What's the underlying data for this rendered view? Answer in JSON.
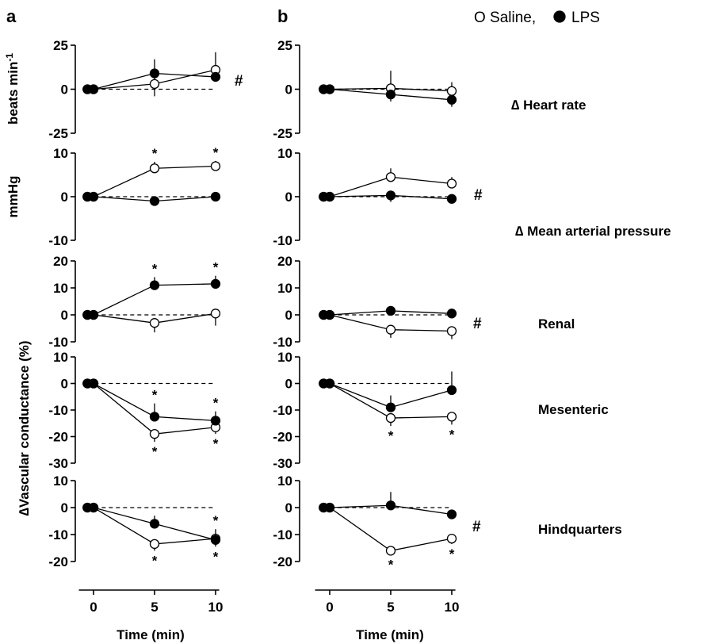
{
  "panels": {
    "a": "a",
    "b": "b"
  },
  "legend": {
    "saline": "O Saline,",
    "lps": "LPS"
  },
  "y_labels": {
    "heart_rate": "beats min",
    "heart_rate_sup": "-1",
    "map": "mmHg",
    "conductance": "∆Vascular conductance (%)"
  },
  "row_labels": {
    "heart_rate": "∆ Heart rate",
    "map": "∆ Mean arterial pressure",
    "renal": "Renal",
    "mesenteric": "Mesenteric",
    "hindquarters": "Hindquarters"
  },
  "x_axis": {
    "label": "Time (min)",
    "ticks": [
      "0",
      "5",
      "10"
    ]
  },
  "colors": {
    "line": "#000000",
    "open_marker_fill": "#ffffff",
    "filled_marker_fill": "#000000"
  },
  "chart_data": [
    {
      "type": "line",
      "panel": "a",
      "row": "heart_rate",
      "ylabel": "beats min-1",
      "ylim": [
        -25,
        25
      ],
      "yticks": [
        25,
        0,
        -25
      ],
      "x": [
        -0.5,
        0,
        5,
        10
      ],
      "series": [
        {
          "name": "Saline",
          "marker": "open",
          "values": [
            0,
            0,
            3,
            11
          ],
          "err_up": [
            0,
            0,
            4,
            10
          ],
          "err_down": [
            0,
            0,
            7,
            0
          ],
          "sig_above": [
            false,
            false,
            false,
            false
          ],
          "sig_below": [
            false,
            false,
            false,
            false
          ]
        },
        {
          "name": "LPS",
          "marker": "filled",
          "values": [
            0,
            0,
            9,
            7
          ],
          "err_up": [
            0,
            0,
            8,
            0
          ],
          "err_down": [
            0,
            0,
            0,
            0
          ],
          "sig_above": [
            false,
            false,
            false,
            false
          ],
          "sig_below": [
            false,
            false,
            false,
            false
          ]
        }
      ],
      "hash": "#"
    },
    {
      "type": "line",
      "panel": "a",
      "row": "map",
      "ylabel": "mmHg",
      "ylim": [
        -10,
        10
      ],
      "yticks": [
        10,
        0,
        -10
      ],
      "x": [
        -0.5,
        0,
        5,
        10
      ],
      "series": [
        {
          "name": "Saline",
          "marker": "open",
          "values": [
            0,
            0,
            6.5,
            7
          ],
          "err_up": [
            0,
            0,
            1.5,
            1.2
          ],
          "err_down": [
            0,
            0,
            0,
            0
          ],
          "sig_above": [
            false,
            false,
            true,
            true
          ],
          "sig_below": [
            false,
            false,
            false,
            false
          ]
        },
        {
          "name": "LPS",
          "marker": "filled",
          "values": [
            0,
            0,
            -1,
            0
          ],
          "err_up": [
            0,
            0,
            0,
            0
          ],
          "err_down": [
            0,
            0,
            0.5,
            0
          ],
          "sig_above": [
            false,
            false,
            false,
            false
          ],
          "sig_below": [
            false,
            false,
            false,
            false
          ]
        }
      ],
      "hash": ""
    },
    {
      "type": "line",
      "panel": "a",
      "row": "renal",
      "ylabel": "∆Vascular conductance (%)",
      "ylim": [
        -10,
        20
      ],
      "yticks": [
        20,
        10,
        0,
        -10
      ],
      "x": [
        -0.5,
        0,
        5,
        10
      ],
      "series": [
        {
          "name": "Saline",
          "marker": "open",
          "values": [
            0,
            0,
            -3,
            0.5
          ],
          "err_up": [
            0,
            0,
            0,
            0
          ],
          "err_down": [
            0,
            0,
            3.5,
            4.5
          ],
          "sig_above": [
            false,
            false,
            false,
            false
          ],
          "sig_below": [
            false,
            false,
            false,
            false
          ]
        },
        {
          "name": "LPS",
          "marker": "filled",
          "values": [
            0,
            0,
            11,
            11.5
          ],
          "err_up": [
            0,
            0,
            3,
            3
          ],
          "err_down": [
            0,
            0,
            0,
            0
          ],
          "sig_above": [
            false,
            false,
            true,
            true
          ],
          "sig_below": [
            false,
            false,
            false,
            false
          ]
        }
      ],
      "hash": ""
    },
    {
      "type": "line",
      "panel": "a",
      "row": "mesenteric",
      "ylabel": "∆Vascular conductance (%)",
      "ylim": [
        -30,
        10
      ],
      "yticks": [
        10,
        0,
        -10,
        -20,
        -30
      ],
      "x": [
        -0.5,
        0,
        5,
        10
      ],
      "series": [
        {
          "name": "Saline",
          "marker": "open",
          "values": [
            0,
            0,
            -19,
            -16.5
          ],
          "err_up": [
            0,
            0,
            0,
            0
          ],
          "err_down": [
            0,
            0,
            3,
            2.5
          ],
          "sig_above": [
            false,
            false,
            false,
            false
          ],
          "sig_below": [
            false,
            false,
            true,
            true
          ]
        },
        {
          "name": "LPS",
          "marker": "filled",
          "values": [
            0,
            0,
            -12.5,
            -14
          ],
          "err_up": [
            0,
            0,
            5,
            3.5
          ],
          "err_down": [
            0,
            0,
            0,
            0
          ],
          "sig_above": [
            false,
            false,
            true,
            true
          ],
          "sig_below": [
            false,
            false,
            false,
            false
          ]
        }
      ],
      "hash": ""
    },
    {
      "type": "line",
      "panel": "a",
      "row": "hindquarters",
      "ylabel": "∆Vascular conductance (%)",
      "ylim": [
        -20,
        10
      ],
      "yticks": [
        10,
        0,
        -10,
        -20
      ],
      "x": [
        -0.5,
        0,
        5,
        10
      ],
      "series": [
        {
          "name": "Saline",
          "marker": "open",
          "values": [
            0,
            0,
            -13.5,
            -11.5
          ],
          "err_up": [
            0,
            0,
            0,
            0
          ],
          "err_down": [
            0,
            0,
            2.5,
            3
          ],
          "sig_above": [
            false,
            false,
            false,
            false
          ],
          "sig_below": [
            false,
            false,
            true,
            true
          ]
        },
        {
          "name": "LPS",
          "marker": "filled",
          "values": [
            0,
            0,
            -6,
            -12
          ],
          "err_up": [
            0,
            0,
            3,
            4
          ],
          "err_down": [
            0,
            0,
            0,
            0
          ],
          "sig_above": [
            false,
            false,
            false,
            true
          ],
          "sig_below": [
            false,
            false,
            false,
            false
          ]
        }
      ],
      "hash": ""
    },
    {
      "type": "line",
      "panel": "b",
      "row": "heart_rate",
      "ylabel": "",
      "ylim": [
        -25,
        25
      ],
      "yticks": [
        25,
        0,
        -25
      ],
      "x": [
        -0.5,
        0,
        5,
        10
      ],
      "series": [
        {
          "name": "Saline",
          "marker": "open",
          "values": [
            0,
            0,
            0.5,
            -1
          ],
          "err_up": [
            0,
            0,
            10,
            5
          ],
          "err_down": [
            0,
            0,
            0,
            0
          ],
          "sig_above": [
            false,
            false,
            false,
            false
          ],
          "sig_below": [
            false,
            false,
            false,
            false
          ]
        },
        {
          "name": "LPS",
          "marker": "filled",
          "values": [
            0,
            0,
            -3,
            -6
          ],
          "err_up": [
            0,
            0,
            0,
            0
          ],
          "err_down": [
            0,
            0,
            4,
            4
          ],
          "sig_above": [
            false,
            false,
            false,
            false
          ],
          "sig_below": [
            false,
            false,
            false,
            false
          ]
        }
      ],
      "hash": ""
    },
    {
      "type": "line",
      "panel": "b",
      "row": "map",
      "ylabel": "",
      "ylim": [
        -10,
        10
      ],
      "yticks": [
        10,
        0,
        -10
      ],
      "x": [
        -0.5,
        0,
        5,
        10
      ],
      "series": [
        {
          "name": "Saline",
          "marker": "open",
          "values": [
            0,
            0,
            4.5,
            3
          ],
          "err_up": [
            0,
            0,
            2,
            1.5
          ],
          "err_down": [
            0,
            0,
            0,
            0
          ],
          "sig_above": [
            false,
            false,
            false,
            false
          ],
          "sig_below": [
            false,
            false,
            false,
            false
          ]
        },
        {
          "name": "LPS",
          "marker": "filled",
          "values": [
            0,
            0,
            0.3,
            -0.5
          ],
          "err_up": [
            0,
            0,
            0,
            0
          ],
          "err_down": [
            0,
            0,
            1.5,
            0.5
          ],
          "sig_above": [
            false,
            false,
            false,
            false
          ],
          "sig_below": [
            false,
            false,
            false,
            false
          ]
        }
      ],
      "hash": "#"
    },
    {
      "type": "line",
      "panel": "b",
      "row": "renal",
      "ylabel": "",
      "ylim": [
        -10,
        20
      ],
      "yticks": [
        20,
        10,
        0,
        -10
      ],
      "x": [
        -0.5,
        0,
        5,
        10
      ],
      "series": [
        {
          "name": "Saline",
          "marker": "open",
          "values": [
            0,
            0,
            -5.5,
            -6
          ],
          "err_up": [
            0,
            0,
            0,
            0
          ],
          "err_down": [
            0,
            0,
            3,
            3
          ],
          "sig_above": [
            false,
            false,
            false,
            false
          ],
          "sig_below": [
            false,
            false,
            false,
            false
          ]
        },
        {
          "name": "LPS",
          "marker": "filled",
          "values": [
            0,
            0,
            1.5,
            0.5
          ],
          "err_up": [
            0,
            0,
            0.5,
            0.5
          ],
          "err_down": [
            0,
            0,
            0,
            0
          ],
          "sig_above": [
            false,
            false,
            false,
            false
          ],
          "sig_below": [
            false,
            false,
            false,
            false
          ]
        }
      ],
      "hash": "#"
    },
    {
      "type": "line",
      "panel": "b",
      "row": "mesenteric",
      "ylabel": "",
      "ylim": [
        -30,
        10
      ],
      "yticks": [
        10,
        0,
        -10,
        -20,
        -30
      ],
      "x": [
        -0.5,
        0,
        5,
        10
      ],
      "series": [
        {
          "name": "Saline",
          "marker": "open",
          "values": [
            0,
            0,
            -13,
            -12.5
          ],
          "err_up": [
            0,
            0,
            0,
            0
          ],
          "err_down": [
            0,
            0,
            3,
            3
          ],
          "sig_above": [
            false,
            false,
            false,
            false
          ],
          "sig_below": [
            false,
            false,
            true,
            true
          ]
        },
        {
          "name": "LPS",
          "marker": "filled",
          "values": [
            0,
            0,
            -9,
            -2.5
          ],
          "err_up": [
            0,
            0,
            4.5,
            7
          ],
          "err_down": [
            0,
            0,
            0,
            0
          ],
          "sig_above": [
            false,
            false,
            false,
            false
          ],
          "sig_below": [
            false,
            false,
            false,
            false
          ]
        }
      ],
      "hash": ""
    },
    {
      "type": "line",
      "panel": "b",
      "row": "hindquarters",
      "ylabel": "",
      "ylim": [
        -20,
        10
      ],
      "yticks": [
        10,
        0,
        -10,
        -20
      ],
      "x": [
        -0.5,
        0,
        5,
        10
      ],
      "series": [
        {
          "name": "Saline",
          "marker": "open",
          "values": [
            0,
            0,
            -16,
            -11.5
          ],
          "err_up": [
            0,
            0,
            0,
            0
          ],
          "err_down": [
            0,
            0,
            1.5,
            2
          ],
          "sig_above": [
            false,
            false,
            false,
            false
          ],
          "sig_below": [
            false,
            false,
            true,
            true
          ]
        },
        {
          "name": "LPS",
          "marker": "filled",
          "values": [
            0,
            0,
            0.8,
            -2.5
          ],
          "err_up": [
            0,
            0,
            5,
            0
          ],
          "err_down": [
            0,
            0,
            0,
            0
          ],
          "sig_above": [
            false,
            false,
            false,
            false
          ],
          "sig_below": [
            false,
            false,
            false,
            false
          ]
        }
      ],
      "hash": "#"
    }
  ]
}
